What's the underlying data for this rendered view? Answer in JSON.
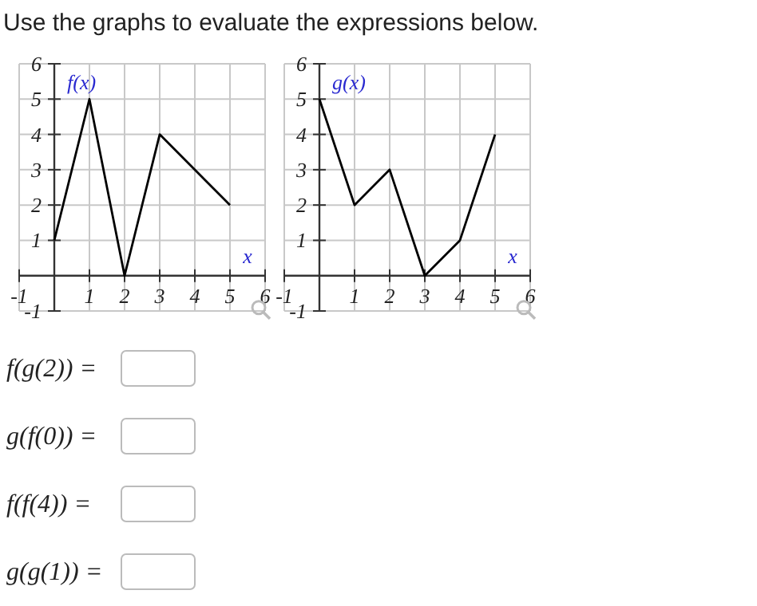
{
  "chart_data": [
    {
      "type": "other",
      "title": "Use the graphs to evaluate the expressions below."
    },
    {
      "type": "line",
      "ylabel": "f(x)",
      "xlabel": "x",
      "x": [
        0,
        1,
        2,
        3,
        5
      ],
      "series": [
        {
          "color": "#000000",
          "values": [
            1,
            5,
            0,
            4,
            2
          ]
        }
      ],
      "xlim": [
        -1,
        6
      ],
      "ylim": [
        -1,
        6
      ],
      "xticks": [
        -1,
        1,
        2,
        3,
        4,
        5,
        6
      ],
      "yticks": [
        -1,
        1,
        2,
        3,
        4,
        5,
        6
      ],
      "grid": true,
      "marker": "none",
      "line_style": "solid"
    },
    {
      "type": "line",
      "ylabel": "g(x)",
      "xlabel": "x",
      "x": [
        0,
        1,
        2,
        3,
        4,
        5
      ],
      "series": [
        {
          "color": "#000000",
          "values": [
            5,
            2,
            3,
            0,
            1,
            4
          ]
        }
      ],
      "xlim": [
        -1,
        6
      ],
      "ylim": [
        -1,
        6
      ],
      "xticks": [
        -1,
        1,
        2,
        3,
        4,
        5,
        6
      ],
      "yticks": [
        -1,
        1,
        2,
        3,
        4,
        5,
        6
      ],
      "grid": true,
      "marker": "none",
      "line_style": "solid"
    },
    {
      "type": "other",
      "annotations": [
        "f(g(2)) =",
        "g(f(0)) =",
        "f(f(4)) =",
        "g(g(1)) ="
      ]
    }
  ]
}
